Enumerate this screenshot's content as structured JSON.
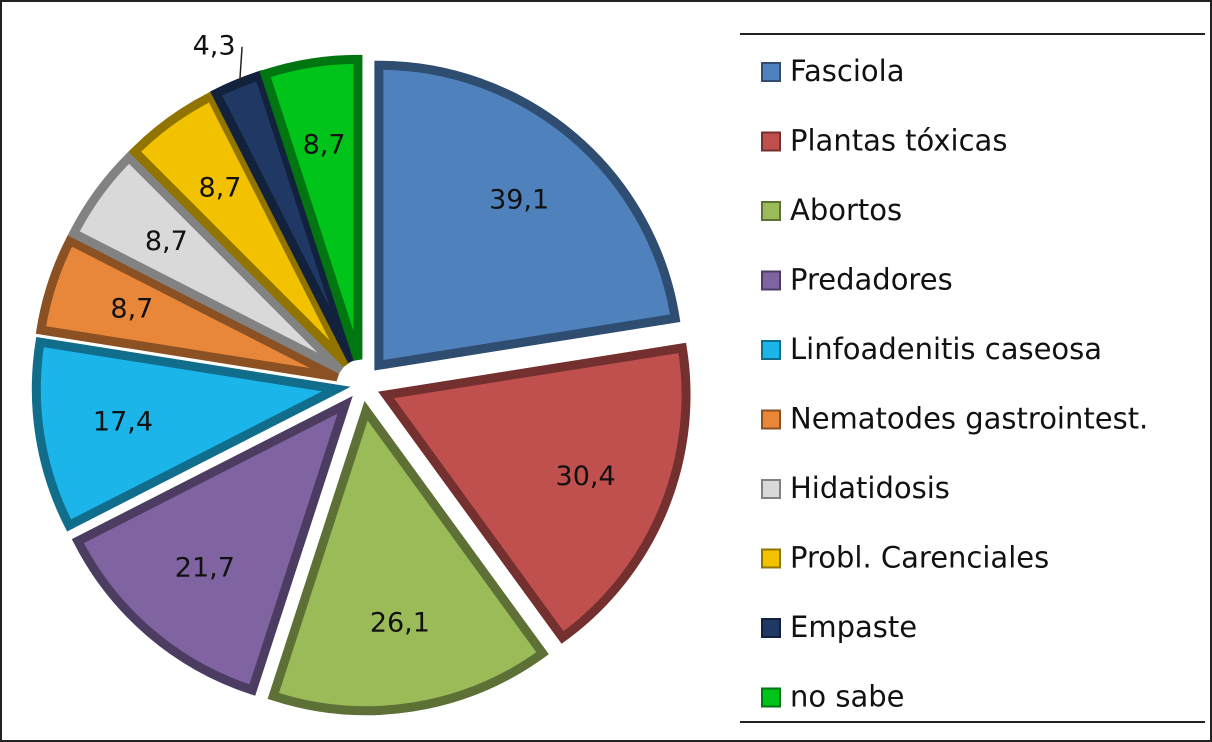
{
  "chart_data": {
    "type": "pie",
    "categories": [
      "Fasciola",
      "Plantas tóxicas",
      "Abortos",
      "Predadores",
      "Linfoadenitis caseosa",
      "Nematodes gastrointest.",
      "Hidatidosis",
      "Probl. Carenciales",
      "Empaste",
      "no sabe"
    ],
    "values": [
      39.1,
      30.4,
      26.1,
      21.7,
      17.4,
      8.7,
      8.7,
      8.7,
      4.3,
      8.7
    ],
    "value_labels": [
      "39,1",
      "30,4",
      "26,1",
      "21,7",
      "17,4",
      "8,7",
      "8,7",
      "8,7",
      "4,3",
      "8,7"
    ],
    "colors": [
      "#4f81bd",
      "#c0504d",
      "#9bbb59",
      "#8064a2",
      "#1cb5ea",
      "#e8873a",
      "#d9d9d9",
      "#f2c200",
      "#1f3864",
      "#00c41a"
    ],
    "legend": "right"
  }
}
